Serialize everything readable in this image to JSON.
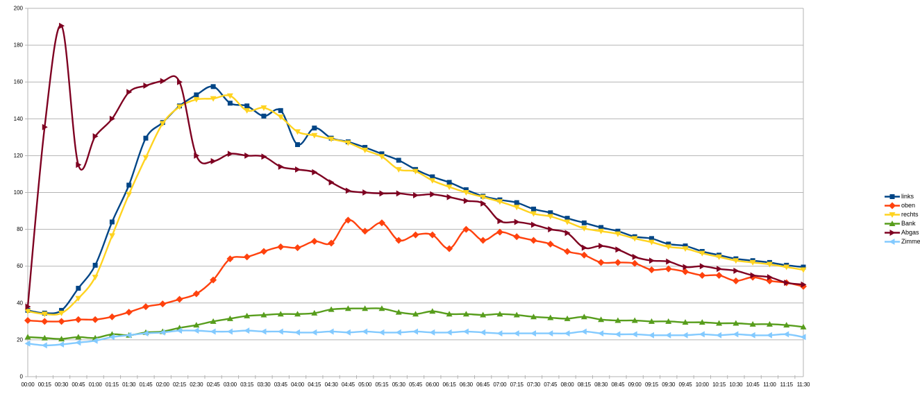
{
  "page": {
    "background": "#ffffff"
  },
  "chart_data": {
    "type": "line",
    "title": "",
    "xlabel": "",
    "ylabel": "",
    "ylim": [
      0,
      200
    ],
    "y_ticks": [
      0,
      20,
      40,
      60,
      80,
      100,
      120,
      140,
      160,
      180,
      200
    ],
    "grid": true,
    "smooth": true,
    "legend_position": "right",
    "gridline_color": "#b3b3b3",
    "axis_color": "#b3b3b3",
    "label_color": "#000000",
    "x_labels": [
      "00:00",
      "00:15",
      "00:30",
      "00:45",
      "01:00",
      "01:15",
      "01:30",
      "01:45",
      "02:00",
      "02:15",
      "02:30",
      "02:45",
      "03:00",
      "03:15",
      "03:30",
      "03:45",
      "04:00",
      "04:15",
      "04:30",
      "04:45",
      "05:00",
      "05:15",
      "05:30",
      "05:45",
      "06:00",
      "06:15",
      "06:30",
      "06:45",
      "07:00",
      "07:15",
      "07:30",
      "07:45",
      "08:00",
      "08:15",
      "08:30",
      "08:45",
      "09:00",
      "09:15",
      "09:30",
      "09:45",
      "10:00",
      "10:15",
      "10:30",
      "10:45",
      "11:00",
      "11:15",
      "11:30"
    ],
    "series": [
      {
        "name": "links",
        "color": "#004586",
        "marker": "square",
        "values": [
          36,
          34.5,
          36,
          48,
          60.5,
          84,
          104,
          129.5,
          138,
          147,
          153,
          157.5,
          148.5,
          147,
          141.5,
          144.5,
          126,
          135,
          129.5,
          127.5,
          124.5,
          121,
          117.5,
          112.5,
          108.5,
          105.5,
          101.5,
          98,
          96,
          94.5,
          91,
          89,
          86,
          83.5,
          81,
          79,
          76,
          75,
          72,
          71,
          68,
          66,
          64,
          63,
          62,
          60.5,
          59.5
        ]
      },
      {
        "name": "oben",
        "color": "#ff420e",
        "marker": "diamond",
        "values": [
          30.5,
          30,
          30,
          31,
          31,
          32.5,
          35,
          38,
          39.5,
          42,
          45,
          52.5,
          64,
          65,
          68,
          70.5,
          70,
          73.5,
          72.5,
          85,
          79,
          83.5,
          74,
          77,
          77,
          69.5,
          80,
          74,
          78.5,
          76,
          74,
          72,
          68,
          66,
          62,
          62,
          61.5,
          58,
          58.5,
          57,
          55,
          55,
          52,
          54,
          52,
          51,
          49
        ]
      },
      {
        "name": "rechts",
        "color": "#ffd320",
        "marker": "triangle-down",
        "values": [
          35.5,
          34,
          34.5,
          42.5,
          54,
          76.5,
          99,
          119,
          137.5,
          146.5,
          150.5,
          151,
          152.5,
          144.5,
          146,
          141,
          133,
          131,
          129,
          127,
          123,
          119.5,
          112.5,
          111.5,
          106.5,
          103,
          100,
          97.5,
          95,
          92,
          88.5,
          87,
          84,
          80.5,
          79,
          77.5,
          75,
          73,
          70.5,
          69.5,
          67,
          65,
          63,
          62,
          61,
          59.5,
          58
        ]
      },
      {
        "name": "Bank",
        "color": "#579d1c",
        "marker": "triangle-up",
        "values": [
          21.5,
          21,
          20.5,
          21.5,
          21,
          23,
          22.5,
          24,
          24.5,
          26.5,
          28,
          30,
          31.5,
          33,
          33.5,
          34,
          34,
          34.5,
          36.5,
          37,
          37,
          37,
          35,
          34,
          35.5,
          34,
          34,
          33.5,
          34,
          33.5,
          32.5,
          32,
          31.5,
          32.5,
          31,
          30.5,
          30.5,
          30,
          30,
          29.5,
          29.5,
          29,
          29,
          28.5,
          28.5,
          28,
          27
        ]
      },
      {
        "name": "Abgas",
        "color": "#7e0021",
        "marker": "triangle-right",
        "values": [
          38,
          135.5,
          190.5,
          115,
          130.5,
          140,
          154.5,
          158,
          160.5,
          160,
          120,
          117,
          121,
          120,
          119.5,
          114,
          112.5,
          111,
          105.5,
          101,
          100,
          99.5,
          99.5,
          98.5,
          99,
          97.5,
          95.5,
          94,
          84.5,
          84,
          82.5,
          80,
          78,
          70,
          71,
          69,
          65,
          63,
          62.5,
          59.5,
          60,
          58.5,
          57.5,
          55,
          54,
          51,
          50
        ]
      },
      {
        "name": "Zimmer",
        "color": "#83caff",
        "marker": "triangle-left",
        "values": [
          18,
          17,
          17.5,
          18.5,
          19.5,
          21.5,
          22.5,
          23.5,
          24,
          25,
          25,
          24.5,
          24.5,
          25,
          24.5,
          24.5,
          24,
          24,
          24.5,
          24,
          24.5,
          24,
          24,
          24.5,
          24,
          24,
          24.5,
          24,
          23.5,
          23.5,
          23.5,
          23.5,
          23.5,
          24.5,
          23.5,
          23,
          23,
          22.5,
          22.5,
          22.5,
          23,
          22.5,
          23,
          22.5,
          22.5,
          23,
          21.5
        ]
      }
    ]
  }
}
